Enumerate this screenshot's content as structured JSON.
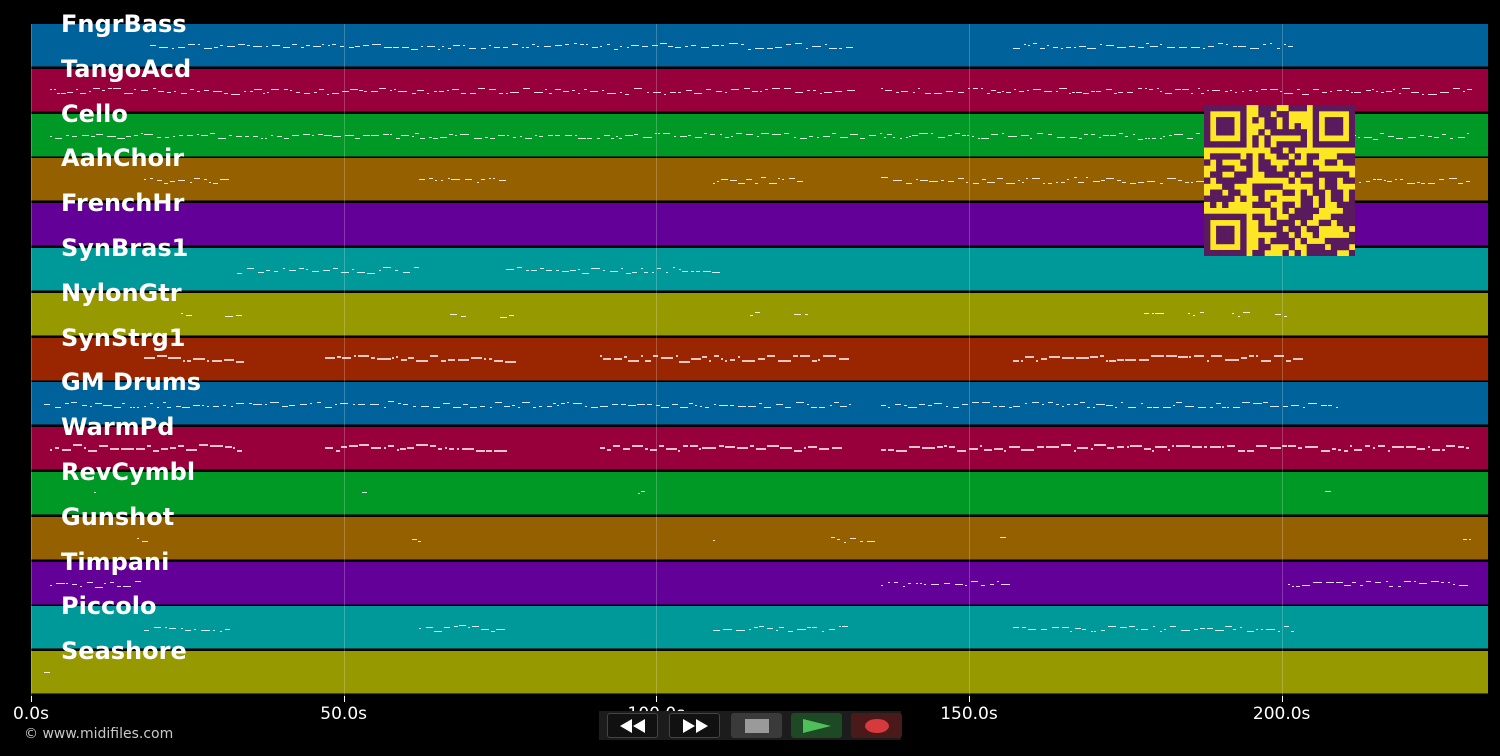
{
  "tracks": [
    {
      "name": "FngrBass",
      "color": "#00629a"
    },
    {
      "name": "TangoAcd",
      "color": "#97003a"
    },
    {
      "name": "Cello",
      "color": "#009926"
    },
    {
      "name": "AahChoir",
      "color": "#956100"
    },
    {
      "name": "FrenchHr",
      "color": "#630097"
    },
    {
      "name": "SynBras1",
      "color": "#009999"
    },
    {
      "name": "NylonGtr",
      "color": "#979900"
    },
    {
      "name": "SynStrg1",
      "color": "#992600"
    },
    {
      "name": "GM Drums",
      "color": "#00629a"
    },
    {
      "name": "WarmPd",
      "color": "#97003a"
    },
    {
      "name": "RevCymbl",
      "color": "#009926"
    },
    {
      "name": "Gunshot",
      "color": "#956100"
    },
    {
      "name": "Timpani",
      "color": "#630097"
    },
    {
      "name": "Piccolo",
      "color": "#009999"
    },
    {
      "name": "Seashore",
      "color": "#979900"
    }
  ],
  "time_axis": {
    "ticks": [
      "0.0s",
      "50.0s",
      "100.0s",
      "150.0s",
      "200.0s"
    ],
    "max_seconds": 233
  },
  "copyright": "© www.midifiles.com",
  "controls": {
    "rewind": "rewind-icon",
    "fast_forward": "fast-forward-icon",
    "stop": "stop-icon",
    "play": "play-icon",
    "record": "record-icon"
  },
  "qr": {
    "fg": "#5a1a5e",
    "bg": "#fde725"
  }
}
